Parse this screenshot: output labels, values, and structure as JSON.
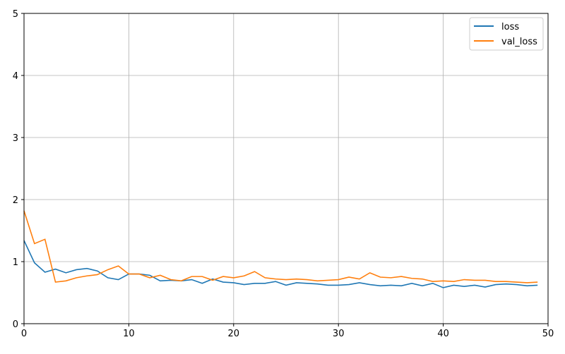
{
  "chart_data": {
    "type": "line",
    "title": "",
    "xlabel": "",
    "ylabel": "",
    "xlim": [
      0,
      50
    ],
    "ylim": [
      0,
      5
    ],
    "xticks": [
      0,
      10,
      20,
      30,
      40,
      50
    ],
    "yticks": [
      0,
      1,
      2,
      3,
      4,
      5
    ],
    "grid": true,
    "legend_position": "top-right",
    "x": [
      0,
      1,
      2,
      3,
      4,
      5,
      6,
      7,
      8,
      9,
      10,
      11,
      12,
      13,
      14,
      15,
      16,
      17,
      18,
      19,
      20,
      21,
      22,
      23,
      24,
      25,
      26,
      27,
      28,
      29,
      30,
      31,
      32,
      33,
      34,
      35,
      36,
      37,
      38,
      39,
      40,
      41,
      42,
      43,
      44,
      45,
      46,
      47,
      48,
      49
    ],
    "series": [
      {
        "name": "loss",
        "color": "#1f77b4",
        "values": [
          1.34,
          0.98,
          0.83,
          0.88,
          0.82,
          0.87,
          0.89,
          0.85,
          0.74,
          0.71,
          0.8,
          0.8,
          0.78,
          0.69,
          0.7,
          0.69,
          0.71,
          0.65,
          0.72,
          0.67,
          0.66,
          0.63,
          0.65,
          0.65,
          0.68,
          0.62,
          0.66,
          0.65,
          0.64,
          0.62,
          0.62,
          0.63,
          0.66,
          0.63,
          0.61,
          0.62,
          0.61,
          0.65,
          0.61,
          0.65,
          0.58,
          0.62,
          0.6,
          0.62,
          0.59,
          0.63,
          0.64,
          0.63,
          0.61,
          0.62
        ]
      },
      {
        "name": "val_loss",
        "color": "#ff7f0e",
        "values": [
          1.82,
          1.29,
          1.36,
          0.67,
          0.69,
          0.74,
          0.77,
          0.79,
          0.87,
          0.93,
          0.8,
          0.8,
          0.74,
          0.78,
          0.71,
          0.69,
          0.76,
          0.76,
          0.7,
          0.76,
          0.74,
          0.77,
          0.84,
          0.74,
          0.72,
          0.71,
          0.72,
          0.71,
          0.69,
          0.7,
          0.71,
          0.75,
          0.72,
          0.82,
          0.75,
          0.74,
          0.76,
          0.73,
          0.72,
          0.68,
          0.69,
          0.68,
          0.71,
          0.7,
          0.7,
          0.68,
          0.68,
          0.67,
          0.66,
          0.67
        ]
      }
    ]
  }
}
